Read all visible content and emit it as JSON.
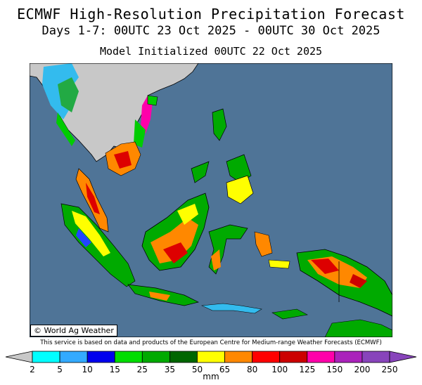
{
  "header": {
    "title": "ECMWF High-Resolution Precipitation Forecast",
    "period": "Days 1-7: 00UTC 23 Oct 2025 - 00UTC 30 Oct 2025",
    "init": "Model Initialized 00UTC 22 Oct 2025"
  },
  "map": {
    "ocean_color": "#4f7497",
    "dry_land_color": "#c8c8c8",
    "region": "Southeast Asia",
    "credit": "© World Ag Weather"
  },
  "disclaimer": "This service is based on data and products of the European Centre for Medium-range Weather Forecasts (ECMWF)",
  "legend": {
    "units": "mm",
    "colors": [
      "#00ffff",
      "#33aaff",
      "#0000ee",
      "#00dd00",
      "#00aa00",
      "#006600",
      "#ffff00",
      "#ff8800",
      "#ff0000",
      "#cc0000",
      "#ff00aa",
      "#aa22bb",
      "#8844bb"
    ],
    "labels": [
      "2",
      "5",
      "10",
      "15",
      "25",
      "35",
      "50",
      "65",
      "80",
      "100",
      "125",
      "150",
      "200",
      "250"
    ]
  }
}
